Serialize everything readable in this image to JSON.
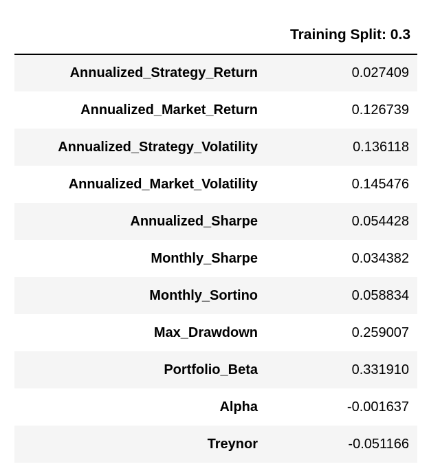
{
  "table": {
    "header": {
      "index_label": "",
      "column_label": "Training Split: 0.3"
    },
    "rows": [
      {
        "label": "Annualized_Strategy_Return",
        "value": "0.027409"
      },
      {
        "label": "Annualized_Market_Return",
        "value": "0.126739"
      },
      {
        "label": "Annualized_Strategy_Volatility",
        "value": "0.136118"
      },
      {
        "label": "Annualized_Market_Volatility",
        "value": "0.145476"
      },
      {
        "label": "Annualized_Sharpe",
        "value": "0.054428"
      },
      {
        "label": "Monthly_Sharpe",
        "value": "0.034382"
      },
      {
        "label": "Monthly_Sortino",
        "value": "0.058834"
      },
      {
        "label": "Max_Drawdown",
        "value": "0.259007"
      },
      {
        "label": "Portfolio_Beta",
        "value": "0.331910"
      },
      {
        "label": "Alpha",
        "value": "-0.001637"
      },
      {
        "label": "Treynor",
        "value": "-0.051166"
      }
    ]
  },
  "colors": {
    "text": "#000000",
    "background": "#ffffff",
    "stripe": "#f5f5f5",
    "header_rule": "#000000"
  }
}
